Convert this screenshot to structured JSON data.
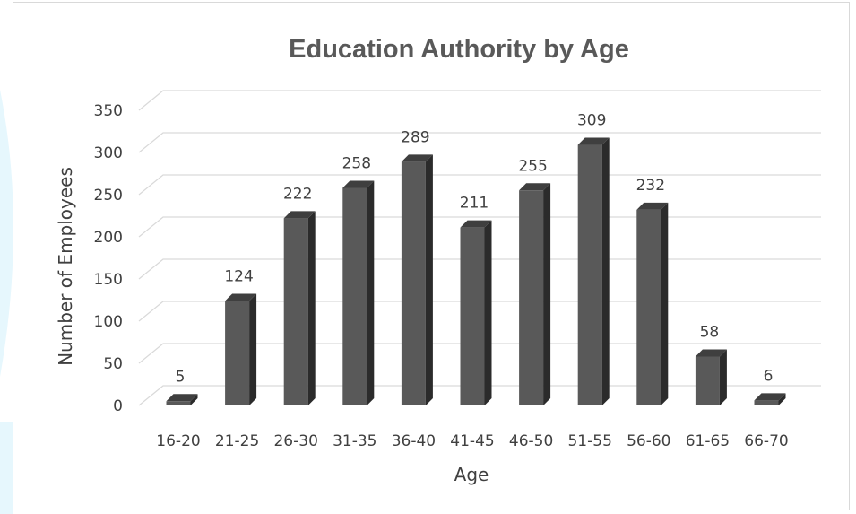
{
  "chart_data": {
    "type": "bar",
    "title": "Education Authority by Age",
    "xlabel": "Age",
    "ylabel": "Number of Employees",
    "categories": [
      "16-20",
      "21-25",
      "26-30",
      "31-35",
      "36-40",
      "41-45",
      "46-50",
      "51-55",
      "56-60",
      "61-65",
      "66-70"
    ],
    "values": [
      5,
      124,
      222,
      258,
      289,
      211,
      255,
      309,
      232,
      58,
      6
    ],
    "data_labels": [
      "5",
      "124",
      "222",
      "258",
      "289",
      "211",
      "255",
      "309",
      "232",
      "58",
      "6"
    ],
    "yticks": [
      "0",
      "50",
      "100",
      "150",
      "200",
      "250",
      "300",
      "350"
    ],
    "ylim": [
      0,
      350
    ],
    "grid": true,
    "legend": "none",
    "colors": {
      "bar_front": "#595959",
      "bar_side": "#2b2b2b",
      "bar_top": "#3f3f3f",
      "gridline": "#d9d9d9",
      "text": "#404040",
      "title": "#595959"
    }
  }
}
